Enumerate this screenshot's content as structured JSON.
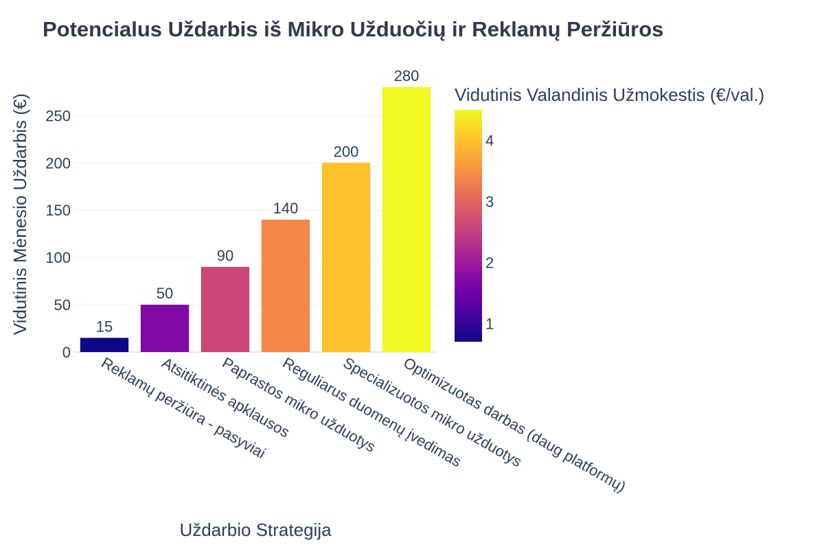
{
  "chart_data": {
    "type": "bar",
    "title": "Potencialus Uždarbis iš Mikro Užduočių ir Reklamų Peržiūros",
    "xlabel": "Uždarbio Strategija",
    "ylabel": "Vidutinis Mėnesio Uždarbis (€)",
    "categories": [
      "Reklamų peržiūra - pasyviai",
      "Atsitiktinės apklausos",
      "Paprastos mikro užduotys",
      "Reguliarus duomenų įvedimas",
      "Specializuotos mikro užduotys",
      "Optimizuotas darbas (daug platformų)"
    ],
    "values": [
      15,
      50,
      90,
      140,
      200,
      280
    ],
    "data_labels": [
      "15",
      "50",
      "90",
      "140",
      "200",
      "280"
    ],
    "color_values": [
      0.7,
      1.7,
      2.6,
      3.4,
      4.0,
      4.5
    ],
    "ylim": [
      0,
      280
    ],
    "yticks": [
      0,
      50,
      100,
      150,
      200,
      250
    ],
    "colorbar": {
      "title": "Vidutinis Valandinis Užmokestis (€/val.)",
      "range": [
        0.7,
        4.5
      ],
      "ticks": [
        1,
        2,
        3,
        4
      ],
      "colorscale": [
        "#0d0887",
        "#46039f",
        "#7201a8",
        "#9c179e",
        "#bd3786",
        "#d8576b",
        "#ed7953",
        "#fb9f3a",
        "#fdca26",
        "#f0f921"
      ]
    },
    "grid": true,
    "legend": "none"
  }
}
